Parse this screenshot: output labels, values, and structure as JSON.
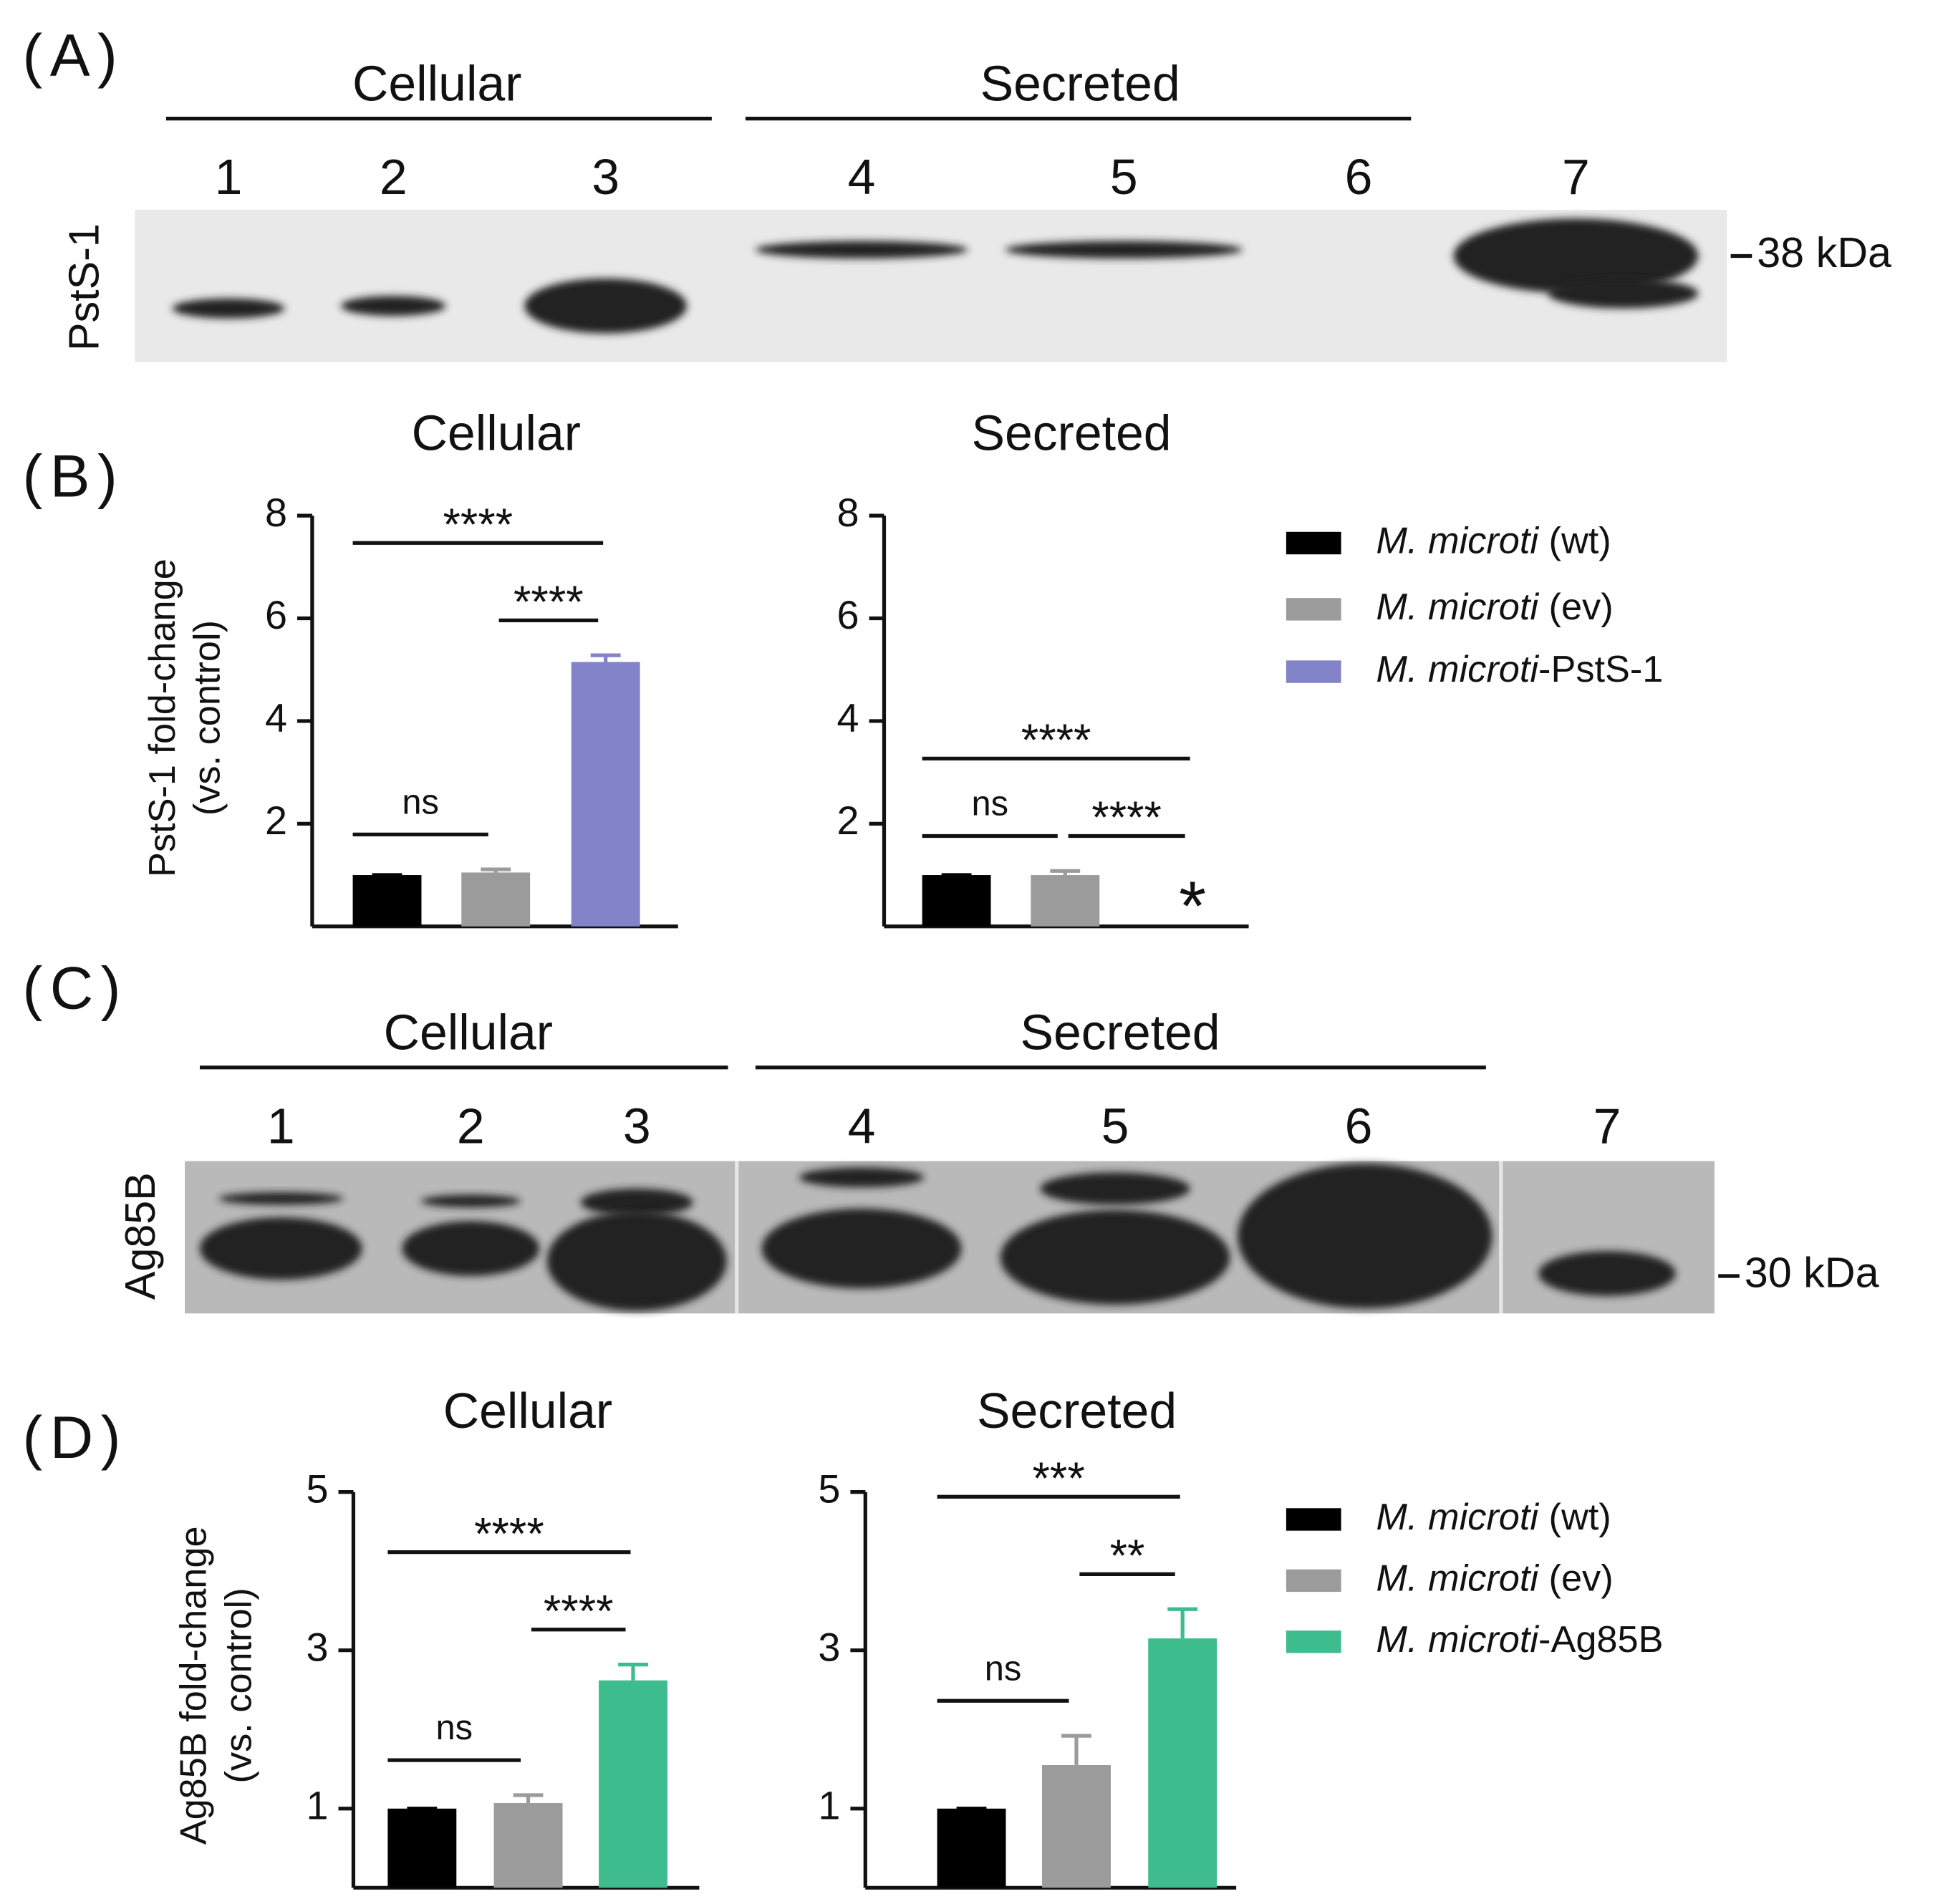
{
  "blots": [
    {
      "label": "(A)",
      "groups": [
        "Cellular",
        "Secreted"
      ],
      "lanes": [
        "1",
        "2",
        "3",
        "4",
        "5",
        "6",
        "7"
      ],
      "protein": "PstS-1",
      "marker": "38 kDa"
    },
    {
      "label": "(C)",
      "groups": [
        "Cellular",
        "Secreted"
      ],
      "lanes": [
        "1",
        "2",
        "3",
        "4",
        "5",
        "6",
        "7"
      ],
      "protein": "Ag85B",
      "marker": "30 kDa"
    }
  ],
  "chart_data": [
    {
      "type": "bar",
      "label": "(B)",
      "ylabel": [
        "PstS-1 fold-change",
        "(vs. control)"
      ],
      "series": [
        {
          "name": "M. microti (wt)",
          "color": "#000000"
        },
        {
          "name": "M. microti (ev)",
          "color": "#9b9b9b"
        },
        {
          "name": "M. microti-PstS-1",
          "color": "#8383c9"
        }
      ],
      "panels": [
        {
          "title": "Cellular",
          "values": [
            1,
            1.05,
            5.15
          ],
          "errors": [
            0,
            0.06,
            0.13
          ],
          "ylim": [
            0,
            8
          ],
          "yticks": [
            2,
            4,
            6,
            8
          ],
          "brackets": [
            {
              "from": 0,
              "to": 1,
              "label": "ns"
            },
            {
              "from": 1,
              "to": 2,
              "label": "****"
            },
            {
              "from": 0,
              "to": 2,
              "label": "****"
            }
          ]
        },
        {
          "title": "Secreted",
          "values": [
            1,
            1.0,
            null
          ],
          "errors": [
            0,
            0.08,
            null
          ],
          "ylim": [
            0,
            8
          ],
          "yticks": [
            2,
            4,
            6,
            8
          ],
          "brackets": [
            {
              "from": 0,
              "to": 1,
              "label": "ns"
            },
            {
              "from": 1,
              "to": 2,
              "label": "****"
            },
            {
              "from": 0,
              "to": 2,
              "label": "****"
            }
          ],
          "annotations": [
            {
              "category": 2,
              "text": "*",
              "color": "#e5202a"
            }
          ]
        }
      ]
    },
    {
      "type": "bar",
      "label": "(D)",
      "ylabel": [
        "Ag85B fold-change",
        "(vs. control)"
      ],
      "series": [
        {
          "name": "M. microti (wt)",
          "color": "#000000"
        },
        {
          "name": "M. microti (ev)",
          "color": "#9b9b9b"
        },
        {
          "name": "M. microti-Ag85B",
          "color": "#3dbd8e"
        }
      ],
      "panels": [
        {
          "title": "Cellular",
          "values": [
            1,
            1.07,
            2.62
          ],
          "errors": [
            0,
            0.1,
            0.2
          ],
          "ylim": [
            0,
            5
          ],
          "yticks": [
            1,
            3,
            5
          ],
          "brackets": [
            {
              "from": 0,
              "to": 1,
              "label": "ns"
            },
            {
              "from": 1,
              "to": 2,
              "label": "****"
            },
            {
              "from": 0,
              "to": 2,
              "label": "****"
            }
          ]
        },
        {
          "title": "Secreted",
          "values": [
            1,
            1.55,
            3.15
          ],
          "errors": [
            0,
            0.37,
            0.37
          ],
          "ylim": [
            0,
            5
          ],
          "yticks": [
            1,
            3,
            5
          ],
          "brackets": [
            {
              "from": 0,
              "to": 1,
              "label": "ns"
            },
            {
              "from": 1,
              "to": 2,
              "label": "**"
            },
            {
              "from": 0,
              "to": 2,
              "label": "***"
            }
          ]
        }
      ]
    }
  ]
}
